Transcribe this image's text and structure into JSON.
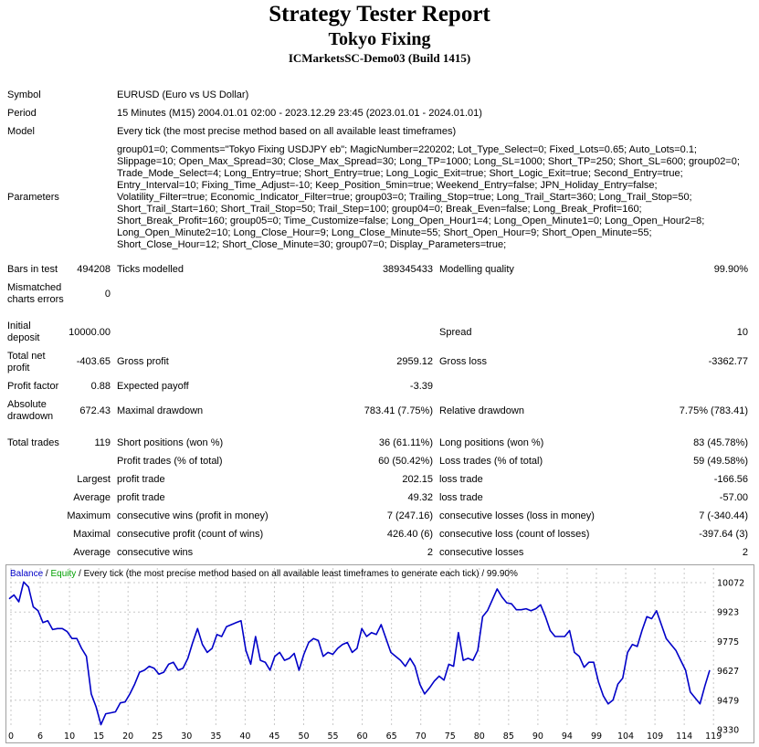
{
  "header": {
    "title": "Strategy Tester Report",
    "subtitle": "Tokyo Fixing",
    "server": "ICMarketsSC-Demo03 (Build 1415)"
  },
  "info": {
    "symbol_label": "Symbol",
    "symbol_value": "EURUSD (Euro vs US Dollar)",
    "period_label": "Period",
    "period_value": "15 Minutes (M15) 2004.01.01 02:00 - 2023.12.29 23:45 (2023.01.01 - 2024.01.01)",
    "model_label": "Model",
    "model_value": "Every tick (the most precise method based on all available least timeframes)",
    "parameters_label": "Parameters",
    "parameters_value": "group01=0; Comments=\"Tokyo Fixing USDJPY eb\"; MagicNumber=220202; Lot_Type_Select=0; Fixed_Lots=0.65; Auto_Lots=0.1; Slippage=10; Open_Max_Spread=30; Close_Max_Spread=30; Long_TP=1000; Long_SL=1000; Short_TP=250; Short_SL=600; group02=0; Trade_Mode_Select=4; Long_Entry=true; Short_Entry=true; Long_Logic_Exit=true; Short_Logic_Exit=true; Second_Entry=true; Entry_Interval=10; Fixing_Time_Adjust=-10; Keep_Position_5min=true; Weekend_Entry=false; JPN_Holiday_Entry=false; Volatility_Filter=true; Economic_Indicator_Filter=true; group03=0; Trailing_Stop=true; Long_Trail_Start=360; Long_Trail_Stop=50; Short_Trail_Start=160; Short_Trail_Stop=50; Trail_Step=100; group04=0; Break_Even=false; Long_Break_Profit=160; Short_Break_Profit=160; group05=0; Time_Customize=false; Long_Open_Hour1=4; Long_Open_Minute1=0; Long_Open_Hour2=8; Long_Open_Minute2=10; Long_Close_Hour=9; Long_Close_Minute=55; Short_Open_Hour=9; Short_Open_Minute=55; Short_Close_Hour=12; Short_Close_Minute=30; group07=0; Display_Parameters=true;"
  },
  "stats": {
    "bars_label": "Bars in test",
    "bars_value": "494208",
    "ticks_label": "Ticks modelled",
    "ticks_value": "389345433",
    "quality_label": "Modelling quality",
    "quality_value": "99.90%",
    "mismatch_label": "Mismatched charts errors",
    "mismatch_value": "0",
    "deposit_label": "Initial deposit",
    "deposit_value": "10000.00",
    "spread_label": "Spread",
    "spread_value": "10",
    "netprofit_label": "Total net profit",
    "netprofit_value": "-403.65",
    "grossprofit_label": "Gross profit",
    "grossprofit_value": "2959.12",
    "grossloss_label": "Gross loss",
    "grossloss_value": "-3362.77",
    "pf_label": "Profit factor",
    "pf_value": "0.88",
    "payoff_label": "Expected payoff",
    "payoff_value": "-3.39",
    "absdd_label": "Absolute drawdown",
    "absdd_value": "672.43",
    "maxdd_label": "Maximal drawdown",
    "maxdd_value": "783.41 (7.75%)",
    "reldd_label": "Relative drawdown",
    "reldd_value": "7.75% (783.41)",
    "trades_label": "Total trades",
    "trades_value": "119",
    "short_label": "Short positions (won %)",
    "short_value": "36 (61.11%)",
    "long_label": "Long positions (won %)",
    "long_value": "83 (45.78%)",
    "profit_trades_label": "Profit trades (% of total)",
    "profit_trades_value": "60 (50.42%)",
    "loss_trades_label": "Loss trades (% of total)",
    "loss_trades_value": "59 (49.58%)",
    "largest_label": "Largest",
    "largest_profit_label": "profit trade",
    "largest_profit_value": "202.15",
    "largest_loss_label": "loss trade",
    "largest_loss_value": "-166.56",
    "average_label": "Average",
    "average_profit_label": "profit trade",
    "average_profit_value": "49.32",
    "average_loss_label": "loss trade",
    "average_loss_value": "-57.00",
    "maximum_label": "Maximum",
    "max_wins_label": "consecutive wins (profit in money)",
    "max_wins_value": "7 (247.16)",
    "max_losses_label": "consecutive losses (loss in money)",
    "max_losses_value": "7 (-340.44)",
    "maximal_label": "Maximal",
    "maxl_profit_label": "consecutive profit (count of wins)",
    "maxl_profit_value": "426.40 (6)",
    "maxl_loss_label": "consecutive loss (count of losses)",
    "maxl_loss_value": "-397.64 (3)",
    "avg2_label": "Average",
    "avg_wins_label": "consecutive wins",
    "avg_wins_value": "2",
    "avg_losses_label": "consecutive losses",
    "avg_losses_value": "2"
  },
  "chart_legend": {
    "balance": "Balance",
    "sep1": " / ",
    "equity": "Equity",
    "rest": " / Every tick (the most precise method based on all available least timeframes to generate each tick) / 99.90%"
  },
  "colors": {
    "balance": "#0000c8",
    "equity": "#00a000",
    "grid": "#c8c8c8"
  },
  "chart_data": {
    "type": "line",
    "series": [
      {
        "name": "Balance",
        "values": [
          9990,
          10010,
          9975,
          10075,
          10050,
          9950,
          9930,
          9870,
          9880,
          9835,
          9840,
          9840,
          9825,
          9790,
          9790,
          9740,
          9700,
          9510,
          9445,
          9355,
          9410,
          9415,
          9420,
          9465,
          9470,
          9510,
          9560,
          9620,
          9630,
          9650,
          9640,
          9610,
          9620,
          9660,
          9670,
          9630,
          9640,
          9690,
          9770,
          9840,
          9760,
          9720,
          9740,
          9810,
          9800,
          9850,
          9860,
          9870,
          9880,
          9730,
          9660,
          9800,
          9680,
          9670,
          9630,
          9700,
          9720,
          9680,
          9690,
          9715,
          9630,
          9710,
          9770,
          9790,
          9780,
          9700,
          9720,
          9710,
          9740,
          9760,
          9770,
          9720,
          9740,
          9840,
          9800,
          9820,
          9810,
          9860,
          9790,
          9720,
          9700,
          9680,
          9650,
          9690,
          9650,
          9560,
          9510,
          9540,
          9575,
          9600,
          9580,
          9660,
          9650,
          9820,
          9680,
          9690,
          9680,
          9730,
          9900,
          9930,
          9985,
          10040,
          10000,
          9970,
          9965,
          9935,
          9935,
          9940,
          9930,
          9940,
          9960,
          9900,
          9830,
          9800,
          9800,
          9800,
          9830,
          9720,
          9700,
          9645,
          9670,
          9670,
          9570,
          9500,
          9460,
          9480,
          9560,
          9590,
          9720,
          9760,
          9750,
          9830,
          9900,
          9890,
          9930,
          9860,
          9790,
          9760,
          9730,
          9680,
          9630,
          9520,
          9490,
          9460,
          9550,
          9630
        ]
      }
    ],
    "x_ticks": [
      "0",
      "6",
      "10",
      "15",
      "20",
      "25",
      "30",
      "35",
      "40",
      "45",
      "50",
      "55",
      "60",
      "65",
      "70",
      "75",
      "80",
      "85",
      "90",
      "94",
      "99",
      "104",
      "109",
      "114",
      "119"
    ],
    "y_ticks": [
      "10072",
      "9923",
      "9775",
      "9627",
      "9479",
      "9330"
    ],
    "ylim": [
      9330,
      10072
    ]
  }
}
